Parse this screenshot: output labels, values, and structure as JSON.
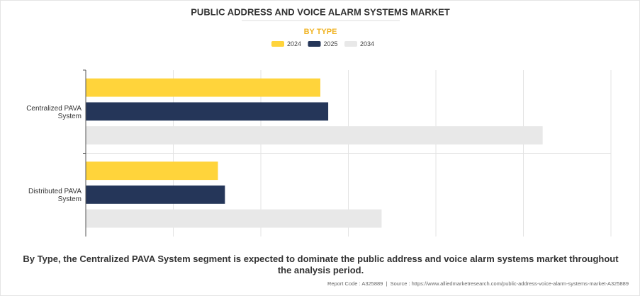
{
  "chart_data": {
    "type": "bar",
    "orientation": "horizontal",
    "title": "PUBLIC ADDRESS AND VOICE ALARM SYSTEMS MARKET",
    "subtitle": "BY TYPE",
    "categories": [
      "Centralized PAVA System",
      "Distributed PAVA System"
    ],
    "series": [
      {
        "name": "2024",
        "color": "#ffd43b",
        "values": [
          2.68,
          1.51
        ]
      },
      {
        "name": "2025",
        "color": "#253659",
        "values": [
          2.77,
          1.59
        ]
      },
      {
        "name": "2034",
        "color": "#e8e8e8",
        "values": [
          5.22,
          3.38
        ]
      }
    ],
    "xlim": [
      0,
      6
    ],
    "xticks": [
      0,
      1,
      2,
      3,
      4,
      5,
      6
    ],
    "tick_labels": false,
    "grid": true,
    "legend": "top",
    "caption": "By Type, the Centralized PAVA System segment is expected to dominate the public address and voice alarm systems market throughout the analysis period.",
    "footer_note": "Report Code : A325889  |  Source : https://www.alliedmarketresearch.com/public-address-voice-alarm-systems-market-A325889"
  }
}
